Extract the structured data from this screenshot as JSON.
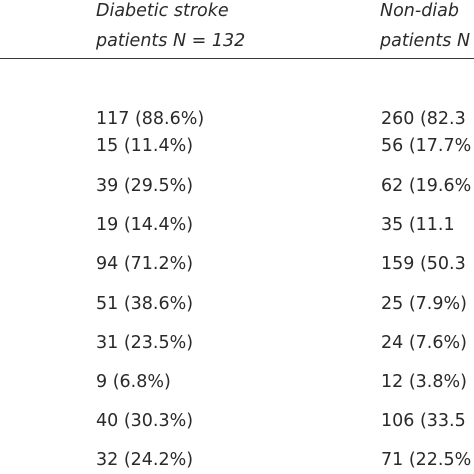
{
  "header": {
    "col1_line1": "Diabetic stroke",
    "col1_line2": "patients N = 132",
    "col2_line1": "Non-diab",
    "col2_line2": "patients N"
  },
  "rows": [
    {
      "diabetic": "117 (88.6%)",
      "non_diabetic": "260 (82.3"
    },
    {
      "diabetic": "15 (11.4%)",
      "non_diabetic": "56 (17.7%"
    },
    {
      "diabetic": "39 (29.5%)",
      "non_diabetic": "62 (19.6%"
    },
    {
      "diabetic": "19 (14.4%)",
      "non_diabetic": "35 (11.1"
    },
    {
      "diabetic": "94 (71.2%)",
      "non_diabetic": "159 (50.3"
    },
    {
      "diabetic": "51 (38.6%)",
      "non_diabetic": "25 (7.9%)"
    },
    {
      "diabetic": "31 (23.5%)",
      "non_diabetic": "24 (7.6%)"
    },
    {
      "diabetic": "9 (6.8%)",
      "non_diabetic": "12 (3.8%)"
    },
    {
      "diabetic": "40 (30.3%)",
      "non_diabetic": "106 (33.5"
    },
    {
      "diabetic": "32 (24.2%)",
      "non_diabetic": "71 (22.5%"
    }
  ]
}
